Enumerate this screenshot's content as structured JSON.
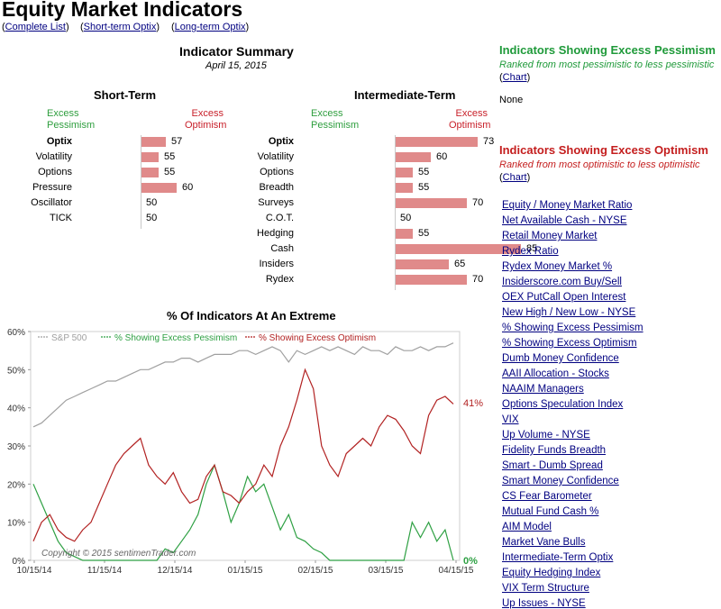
{
  "header": {
    "title": "Equity Market Indicators",
    "links": [
      "Complete List",
      "Short-term Optix",
      "Long-term Optix"
    ]
  },
  "summary": {
    "title": "Indicator Summary",
    "date": "April 15, 2015",
    "excess_pessimism": "Excess\nPessimism",
    "excess_optimism": "Excess\nOptimism",
    "short_term": {
      "title": "Short-Term",
      "rows": [
        {
          "label": "Optix",
          "value": 57
        },
        {
          "label": "Volatility",
          "value": 55
        },
        {
          "label": "Options",
          "value": 55
        },
        {
          "label": "Pressure",
          "value": 60
        },
        {
          "label": "Oscillator",
          "value": 50
        },
        {
          "label": "TICK",
          "value": 50
        }
      ]
    },
    "intermediate_term": {
      "title": "Intermediate-Term",
      "rows": [
        {
          "label": "Optix",
          "value": 73
        },
        {
          "label": "Volatility",
          "value": 60
        },
        {
          "label": "Options",
          "value": 55
        },
        {
          "label": "Breadth",
          "value": 55
        },
        {
          "label": "Surveys",
          "value": 70
        },
        {
          "label": "C.O.T.",
          "value": 50
        },
        {
          "label": "Hedging",
          "value": 55
        },
        {
          "label": "Cash",
          "value": 85
        },
        {
          "label": "Insiders",
          "value": 65
        },
        {
          "label": "Rydex",
          "value": 70
        }
      ]
    }
  },
  "chart_data": {
    "type": "line",
    "title": "% Of Indicators At An Extreme",
    "legend": [
      "S&P 500",
      "% Showing Excess Pessimism",
      "% Showing Excess Optimism"
    ],
    "yticks": [
      "0%",
      "10%",
      "20%",
      "30%",
      "40%",
      "50%",
      "60%"
    ],
    "ylim": [
      0,
      60
    ],
    "xticks": [
      "10/15/14",
      "11/15/14",
      "12/15/14",
      "01/15/15",
      "02/15/15",
      "03/15/15",
      "04/15/15"
    ],
    "copyright": "Copyright © 2015  sentimenTrader.com",
    "end_label_optimism": "41%",
    "end_label_pessimism": "0%",
    "colors": {
      "sp500": "#a0a0a0",
      "pessimism": "#2ea043",
      "optimism": "#b22222"
    },
    "series": [
      {
        "name": "S&P 500",
        "values": [
          35,
          36,
          38,
          40,
          42,
          43,
          44,
          45,
          46,
          47,
          47,
          48,
          49,
          50,
          50,
          51,
          52,
          52,
          53,
          53,
          52,
          53,
          54,
          54,
          54,
          55,
          55,
          54,
          55,
          56,
          55,
          52,
          55,
          54,
          55,
          56,
          55,
          56,
          55,
          54,
          56,
          55,
          55,
          54,
          56,
          55,
          55,
          56,
          55,
          56,
          56,
          57
        ]
      },
      {
        "name": "% Showing Excess Pessimism",
        "values": [
          20,
          15,
          10,
          5,
          2,
          1,
          0,
          0,
          0,
          0,
          0,
          0,
          0,
          0,
          0,
          0,
          3,
          2,
          5,
          8,
          12,
          20,
          25,
          18,
          10,
          15,
          22,
          18,
          20,
          14,
          8,
          12,
          6,
          5,
          3,
          2,
          0,
          0,
          0,
          0,
          0,
          0,
          0,
          0,
          0,
          0,
          10,
          6,
          10,
          5,
          8,
          0
        ]
      },
      {
        "name": "% Showing Excess Optimism",
        "values": [
          5,
          10,
          12,
          8,
          6,
          5,
          8,
          10,
          15,
          20,
          25,
          28,
          30,
          32,
          25,
          22,
          20,
          23,
          18,
          15,
          16,
          22,
          25,
          18,
          17,
          15,
          18,
          20,
          25,
          22,
          30,
          35,
          42,
          50,
          45,
          30,
          25,
          22,
          28,
          30,
          32,
          30,
          35,
          38,
          37,
          34,
          30,
          28,
          38,
          42,
          43,
          41
        ]
      }
    ]
  },
  "right": {
    "pessimism_title": "Indicators Showing Excess Pessimism",
    "pessimism_sub": "Ranked from most pessimistic to less pessimistic",
    "pessimism_chart_link": "Chart",
    "pessimism_none": "None",
    "optimism_title": "Indicators Showing Excess Optimism",
    "optimism_sub": "Ranked from most optimistic to less optimistic",
    "optimism_chart_link": "Chart",
    "optimism_list": [
      "Equity / Money Market Ratio",
      "Net Available Cash  - NYSE",
      "Retail Money Market",
      "Rydex Ratio",
      "Rydex Money Market %",
      "Insiderscore.com Buy/Sell",
      "OEX PutCall Open Interest",
      "New High / New Low - NYSE",
      "% Showing Excess Pessimism",
      "% Showing Excess Optimism",
      "Dumb Money Confidence",
      "AAII Allocation - Stocks",
      "NAAIM Managers",
      "Options Speculation Index",
      "VIX",
      "Up Volume - NYSE",
      "Fidelity Funds Breadth",
      "Smart - Dumb Spread",
      "Smart Money Confidence",
      "CS Fear Barometer",
      "Mutual Fund Cash %",
      "AIM Model",
      "Market Vane Bulls",
      "Intermediate-Term Optix",
      "Equity Hedging Index",
      "VIX Term Structure",
      "Up Issues - NYSE"
    ]
  }
}
